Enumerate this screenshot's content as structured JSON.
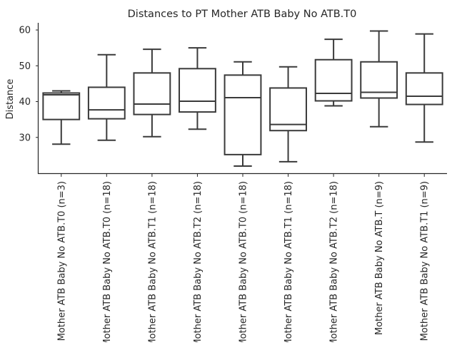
{
  "chart_data": {
    "type": "box",
    "title": "Distances to PT Mother ATB Baby No ATB.T0",
    "xlabel": "",
    "ylabel": "Distance",
    "ylim": [
      20,
      62
    ],
    "yticks": [
      30,
      40,
      50,
      60
    ],
    "grid": false,
    "categories": [
      "Mother ATB Baby No ATB.T0 (n=3)",
      "Mother ATB Baby No ATB.T0 (n=18)",
      "Mother ATB Baby No ATB.T1 (n=18)",
      "Mother ATB Baby No ATB.T2 (n=18)",
      "Mother ATB Baby No ATB.T0 (n=18)",
      "Mother ATB Baby No ATB.T1 (n=18)",
      "Mother ATB Baby No ATB.T2 (n=18)",
      "Mother ATB Baby No ATB.T (n=9)",
      "Mother ATB Baby No ATB.T1 (n=9)"
    ],
    "boxes": [
      {
        "whisker_low": 28.1,
        "q1": 35.0,
        "median": 41.9,
        "q3": 42.4,
        "whisker_high": 43.0
      },
      {
        "whisker_low": 29.2,
        "q1": 35.2,
        "median": 37.7,
        "q3": 44.0,
        "whisker_high": 53.1
      },
      {
        "whisker_low": 30.2,
        "q1": 36.4,
        "median": 39.3,
        "q3": 48.0,
        "whisker_high": 54.6
      },
      {
        "whisker_low": 32.3,
        "q1": 37.1,
        "median": 40.1,
        "q3": 49.2,
        "whisker_high": 55.0
      },
      {
        "whisker_low": 22.0,
        "q1": 25.2,
        "median": 41.1,
        "q3": 47.4,
        "whisker_high": 51.1
      },
      {
        "whisker_low": 23.2,
        "q1": 31.9,
        "median": 33.6,
        "q3": 43.8,
        "whisker_high": 49.7
      },
      {
        "whisker_low": 38.8,
        "q1": 40.2,
        "median": 42.3,
        "q3": 51.7,
        "whisker_high": 57.4
      },
      {
        "whisker_low": 33.0,
        "q1": 41.0,
        "median": 42.6,
        "q3": 51.1,
        "whisker_high": 59.7
      },
      {
        "whisker_low": 28.7,
        "q1": 39.2,
        "median": 41.5,
        "q3": 48.0,
        "whisker_high": 58.9
      }
    ],
    "box_color": "#ffffff",
    "line_color": "#3a3a3a",
    "axis_color": "#262626"
  }
}
